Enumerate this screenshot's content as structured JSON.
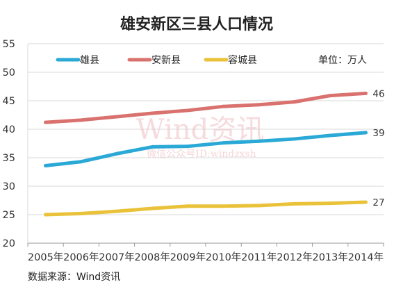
{
  "chart_data": {
    "type": "line",
    "title": "雄安新区三县人口情况",
    "unit_label": "单位：万人",
    "source": "数据来源：Wind资讯",
    "watermark": {
      "brand": "Wind资讯",
      "line": "微信公众号ID:windzxsh"
    },
    "categories": [
      "2005年",
      "2006年",
      "2007年",
      "2008年",
      "2009年",
      "2010年",
      "2011年",
      "2012年",
      "2013年",
      "2014年"
    ],
    "ylim": [
      20,
      55
    ],
    "yticks": [
      "20",
      "25",
      "30",
      "35",
      "40",
      "45",
      "50",
      "55"
    ],
    "grid": true,
    "legend_position": "top",
    "series": [
      {
        "name": "雄县",
        "color": "#2aa9d6",
        "values": [
          33.6,
          34.3,
          35.7,
          36.9,
          37.0,
          37.6,
          37.9,
          38.3,
          38.9,
          39.4
        ],
        "end_label": "39"
      },
      {
        "name": "安新县",
        "color": "#d9716e",
        "values": [
          41.2,
          41.6,
          42.2,
          42.8,
          43.3,
          44.0,
          44.3,
          44.8,
          45.9,
          46.3
        ],
        "end_label": "46"
      },
      {
        "name": "容城县",
        "color": "#e9c23a",
        "values": [
          25.0,
          25.2,
          25.6,
          26.1,
          26.5,
          26.5,
          26.6,
          26.9,
          27.0,
          27.2
        ],
        "end_label": "27"
      }
    ]
  }
}
